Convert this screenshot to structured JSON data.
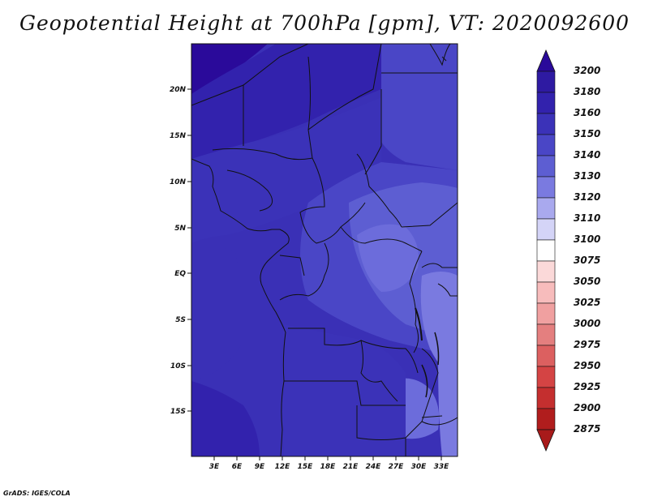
{
  "title": "Geopotential Height at 700hPa [gpm], VT: 2020092600",
  "credit": "GrADS: IGES/COLA",
  "axes": {
    "lat_labels": [
      "20N",
      "15N",
      "10N",
      "5N",
      "EQ",
      "5S",
      "10S",
      "15S"
    ],
    "lon_labels": [
      "3E",
      "6E",
      "9E",
      "12E",
      "15E",
      "18E",
      "21E",
      "24E",
      "27E",
      "30E",
      "33E"
    ]
  },
  "colorbar": {
    "levels": [
      "3200",
      "3180",
      "3160",
      "3150",
      "3140",
      "3130",
      "3120",
      "3110",
      "3100",
      "3075",
      "3050",
      "3025",
      "3000",
      "2975",
      "2950",
      "2925",
      "2900",
      "2875"
    ],
    "colors": [
      "#2a0a9a",
      "#2e1aa2",
      "#3222ad",
      "#3b32b8",
      "#4a46c6",
      "#5d5ed2",
      "#7a7ae0",
      "#a9a9ee",
      "#d4d4f7",
      "#ffffff",
      "#fbd9d9",
      "#f7bcbc",
      "#f0a0a0",
      "#e47f7f",
      "#dc6060",
      "#d44444",
      "#c42f2f",
      "#b01d1d",
      "#9a1010"
    ],
    "top_arrow_color": "#2a0a9a",
    "bottom_arrow_color": "#a81a1a"
  }
}
